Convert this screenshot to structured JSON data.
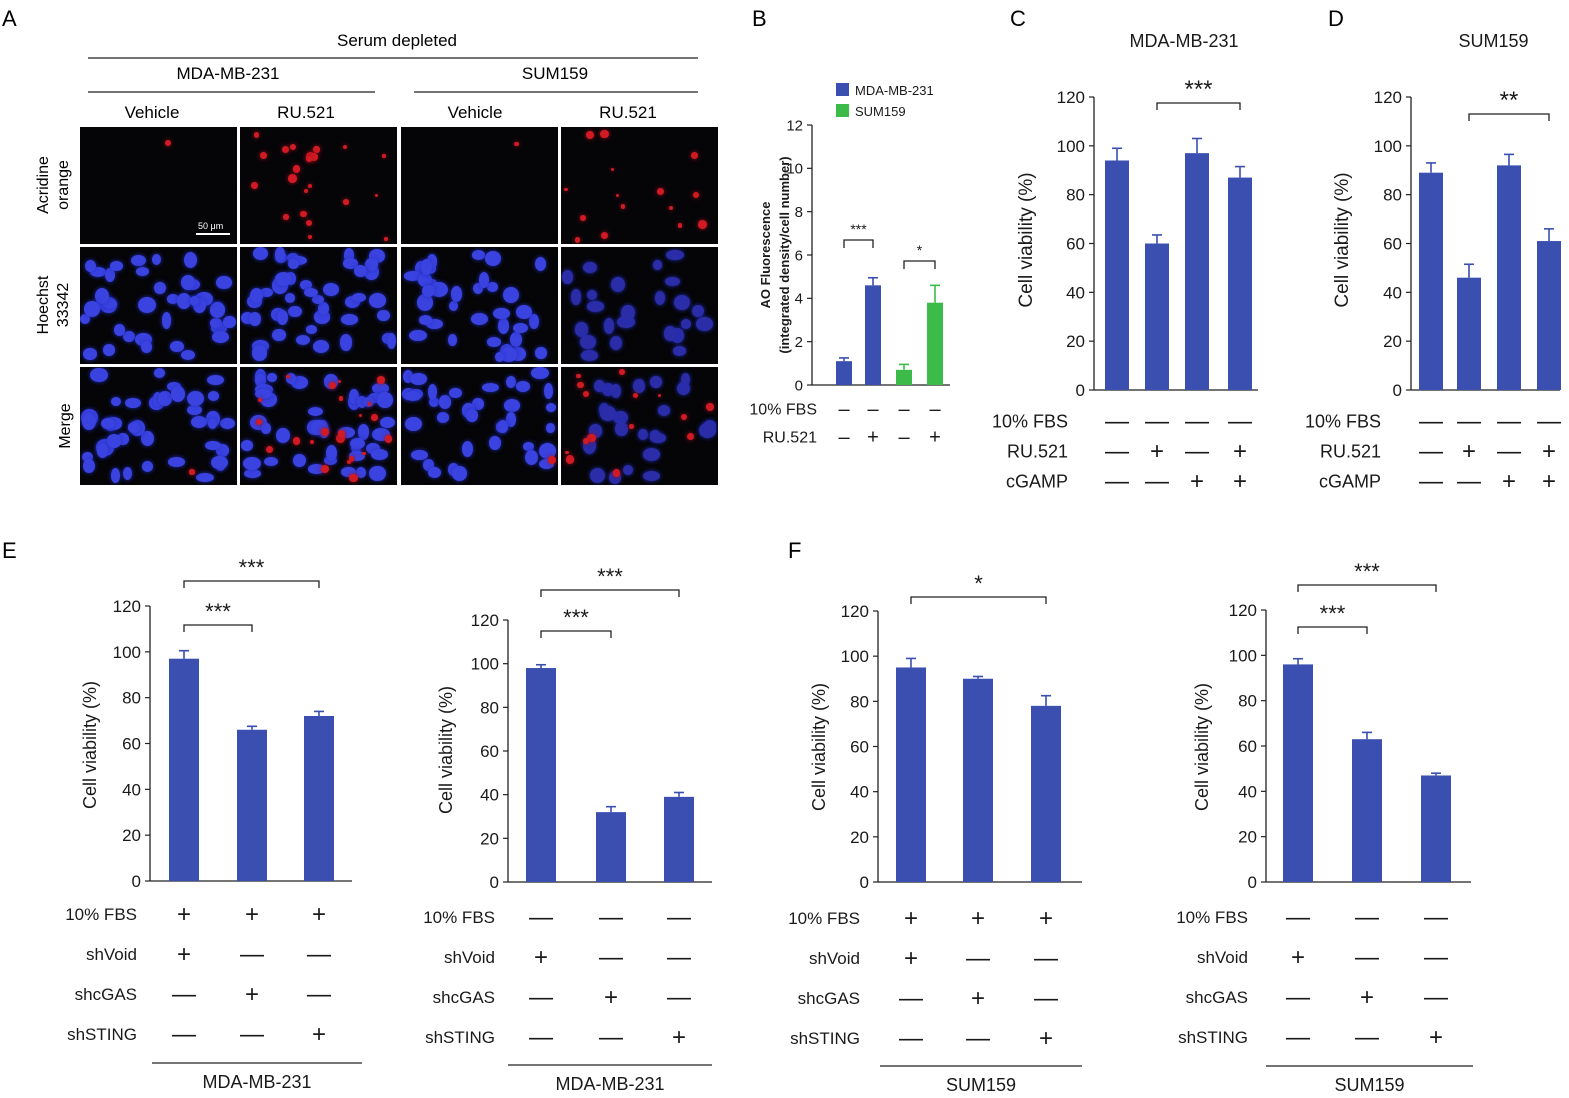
{
  "panel_letters": [
    "A",
    "B",
    "C",
    "D",
    "E",
    "F"
  ],
  "panel_a": {
    "title": "Serum depleted",
    "cell_lines": [
      "MDA-MB-231",
      "SUM159"
    ],
    "treatments": [
      "Vehicle",
      "RU.521",
      "Vehicle",
      "RU.521"
    ],
    "row_labels": [
      [
        "Acridine",
        "orange"
      ],
      [
        "Hoechst",
        "33342"
      ],
      [
        "Merge"
      ]
    ],
    "scale_bar": "50 μm"
  },
  "colors": {
    "blue": "#3a4fb0",
    "green": "#3dbb4a",
    "axis": "#222222"
  },
  "chart_data": [
    {
      "id": "B",
      "type": "bar",
      "title": "",
      "ylabel": [
        "AO Fluorescence",
        "(integrated density/cell number)"
      ],
      "ylim": [
        0,
        12
      ],
      "yticks": [
        0,
        2,
        4,
        6,
        8,
        10,
        12
      ],
      "legend": [
        "MDA-MB-231",
        "SUM159"
      ],
      "values": [
        1.1,
        4.6,
        0.7,
        3.8
      ],
      "errors": [
        0.15,
        0.35,
        0.25,
        0.8
      ],
      "bar_colors": [
        "blue",
        "blue",
        "green",
        "green"
      ],
      "conditions": [
        {
          "label": "10% FBS",
          "signs": [
            "–",
            "–",
            "–",
            "–"
          ]
        },
        {
          "label": "RU.521",
          "signs": [
            "–",
            "+",
            "–",
            "+"
          ]
        }
      ],
      "significance": [
        {
          "from": 0,
          "to": 1,
          "label": "***"
        },
        {
          "from": 2,
          "to": 3,
          "label": "*"
        }
      ],
      "footer": ""
    },
    {
      "id": "C",
      "type": "bar",
      "title": "MDA-MB-231",
      "ylabel": [
        "Cell viability (%)"
      ],
      "ylim": [
        0,
        120
      ],
      "yticks": [
        0,
        20,
        40,
        60,
        80,
        100,
        120
      ],
      "values": [
        94,
        60,
        97,
        87
      ],
      "errors": [
        5,
        3.5,
        6,
        4.5
      ],
      "conditions": [
        {
          "label": "10% FBS",
          "signs": [
            "—",
            "—",
            "—",
            "—"
          ]
        },
        {
          "label": "RU.521",
          "signs": [
            "—",
            "+",
            "—",
            "+"
          ]
        },
        {
          "label": "cGAMP",
          "signs": [
            "—",
            "—",
            "+",
            "+"
          ]
        }
      ],
      "significance": [
        {
          "from": 1,
          "to": 3,
          "label": "***"
        }
      ],
      "footer": ""
    },
    {
      "id": "D",
      "type": "bar",
      "title": "SUM159",
      "ylabel": [
        "Cell viability (%)"
      ],
      "ylim": [
        0,
        120
      ],
      "yticks": [
        0,
        20,
        40,
        60,
        80,
        100,
        120
      ],
      "values": [
        89,
        46,
        92,
        61
      ],
      "errors": [
        4,
        5.5,
        4.5,
        5
      ],
      "conditions": [
        {
          "label": "10% FBS",
          "signs": [
            "—",
            "—",
            "—",
            "—"
          ]
        },
        {
          "label": "RU.521",
          "signs": [
            "—",
            "+",
            "—",
            "+"
          ]
        },
        {
          "label": "cGAMP",
          "signs": [
            "—",
            "—",
            "+",
            "+"
          ]
        }
      ],
      "significance": [
        {
          "from": 1,
          "to": 3,
          "label": "**"
        }
      ],
      "footer": ""
    },
    {
      "id": "E1",
      "type": "bar",
      "title": "",
      "ylabel": [
        "Cell viability  (%)"
      ],
      "ylim": [
        0,
        120
      ],
      "yticks": [
        0,
        20,
        40,
        60,
        80,
        100,
        120
      ],
      "values": [
        97,
        66,
        72
      ],
      "errors": [
        3.5,
        1.5,
        2
      ],
      "conditions": [
        {
          "label": "10% FBS",
          "signs": [
            "+",
            "+",
            "+"
          ]
        },
        {
          "label": "shVoid",
          "signs": [
            "+",
            "—",
            "—"
          ]
        },
        {
          "label": "shcGAS",
          "signs": [
            "—",
            "+",
            "—"
          ]
        },
        {
          "label": "shSTING",
          "signs": [
            "—",
            "—",
            "+"
          ]
        }
      ],
      "significance": [
        {
          "from": 0,
          "to": 1,
          "label": "***"
        },
        {
          "from": 0,
          "to": 2,
          "label": "***"
        }
      ],
      "footer": "MDA-MB-231"
    },
    {
      "id": "E2",
      "type": "bar",
      "title": "",
      "ylabel": [
        "Cell viability (%)"
      ],
      "ylim": [
        0,
        120
      ],
      "yticks": [
        0,
        20,
        40,
        60,
        80,
        100,
        120
      ],
      "values": [
        98,
        32,
        39
      ],
      "errors": [
        1.5,
        2.5,
        2
      ],
      "conditions": [
        {
          "label": "10% FBS",
          "signs": [
            "—",
            "—",
            "—"
          ]
        },
        {
          "label": "shVoid",
          "signs": [
            "+",
            "—",
            "—"
          ]
        },
        {
          "label": "shcGAS",
          "signs": [
            "—",
            "+",
            "—"
          ]
        },
        {
          "label": "shSTING",
          "signs": [
            "—",
            "—",
            "+"
          ]
        }
      ],
      "significance": [
        {
          "from": 0,
          "to": 1,
          "label": "***"
        },
        {
          "from": 0,
          "to": 2,
          "label": "***"
        }
      ],
      "footer": "MDA-MB-231"
    },
    {
      "id": "F1",
      "type": "bar",
      "title": "",
      "ylabel": [
        "Cell viability (%)"
      ],
      "ylim": [
        0,
        120
      ],
      "yticks": [
        0,
        20,
        40,
        60,
        80,
        100,
        120
      ],
      "values": [
        95,
        90,
        78
      ],
      "errors": [
        4,
        1,
        4.5
      ],
      "conditions": [
        {
          "label": "10% FBS",
          "signs": [
            "+",
            "+",
            "+"
          ]
        },
        {
          "label": "shVoid",
          "signs": [
            "+",
            "—",
            "—"
          ]
        },
        {
          "label": "shcGAS",
          "signs": [
            "—",
            "+",
            "—"
          ]
        },
        {
          "label": "shSTING",
          "signs": [
            "—",
            "—",
            "+"
          ]
        }
      ],
      "significance": [
        {
          "from": 0,
          "to": 2,
          "label": "*"
        }
      ],
      "footer": "SUM159"
    },
    {
      "id": "F2",
      "type": "bar",
      "title": "",
      "ylabel": [
        "Cell viability (%)"
      ],
      "ylim": [
        0,
        120
      ],
      "yticks": [
        0,
        20,
        40,
        60,
        80,
        100,
        120
      ],
      "values": [
        96,
        63,
        47
      ],
      "errors": [
        2.5,
        3,
        1
      ],
      "conditions": [
        {
          "label": "10% FBS",
          "signs": [
            "—",
            "—",
            "—"
          ]
        },
        {
          "label": "shVoid",
          "signs": [
            "+",
            "—",
            "—"
          ]
        },
        {
          "label": "shcGAS",
          "signs": [
            "—",
            "+",
            "—"
          ]
        },
        {
          "label": "shSTING",
          "signs": [
            "—",
            "—",
            "+"
          ]
        }
      ],
      "significance": [
        {
          "from": 0,
          "to": 1,
          "label": "***"
        },
        {
          "from": 0,
          "to": 2,
          "label": "***"
        }
      ],
      "footer": "SUM159"
    }
  ]
}
